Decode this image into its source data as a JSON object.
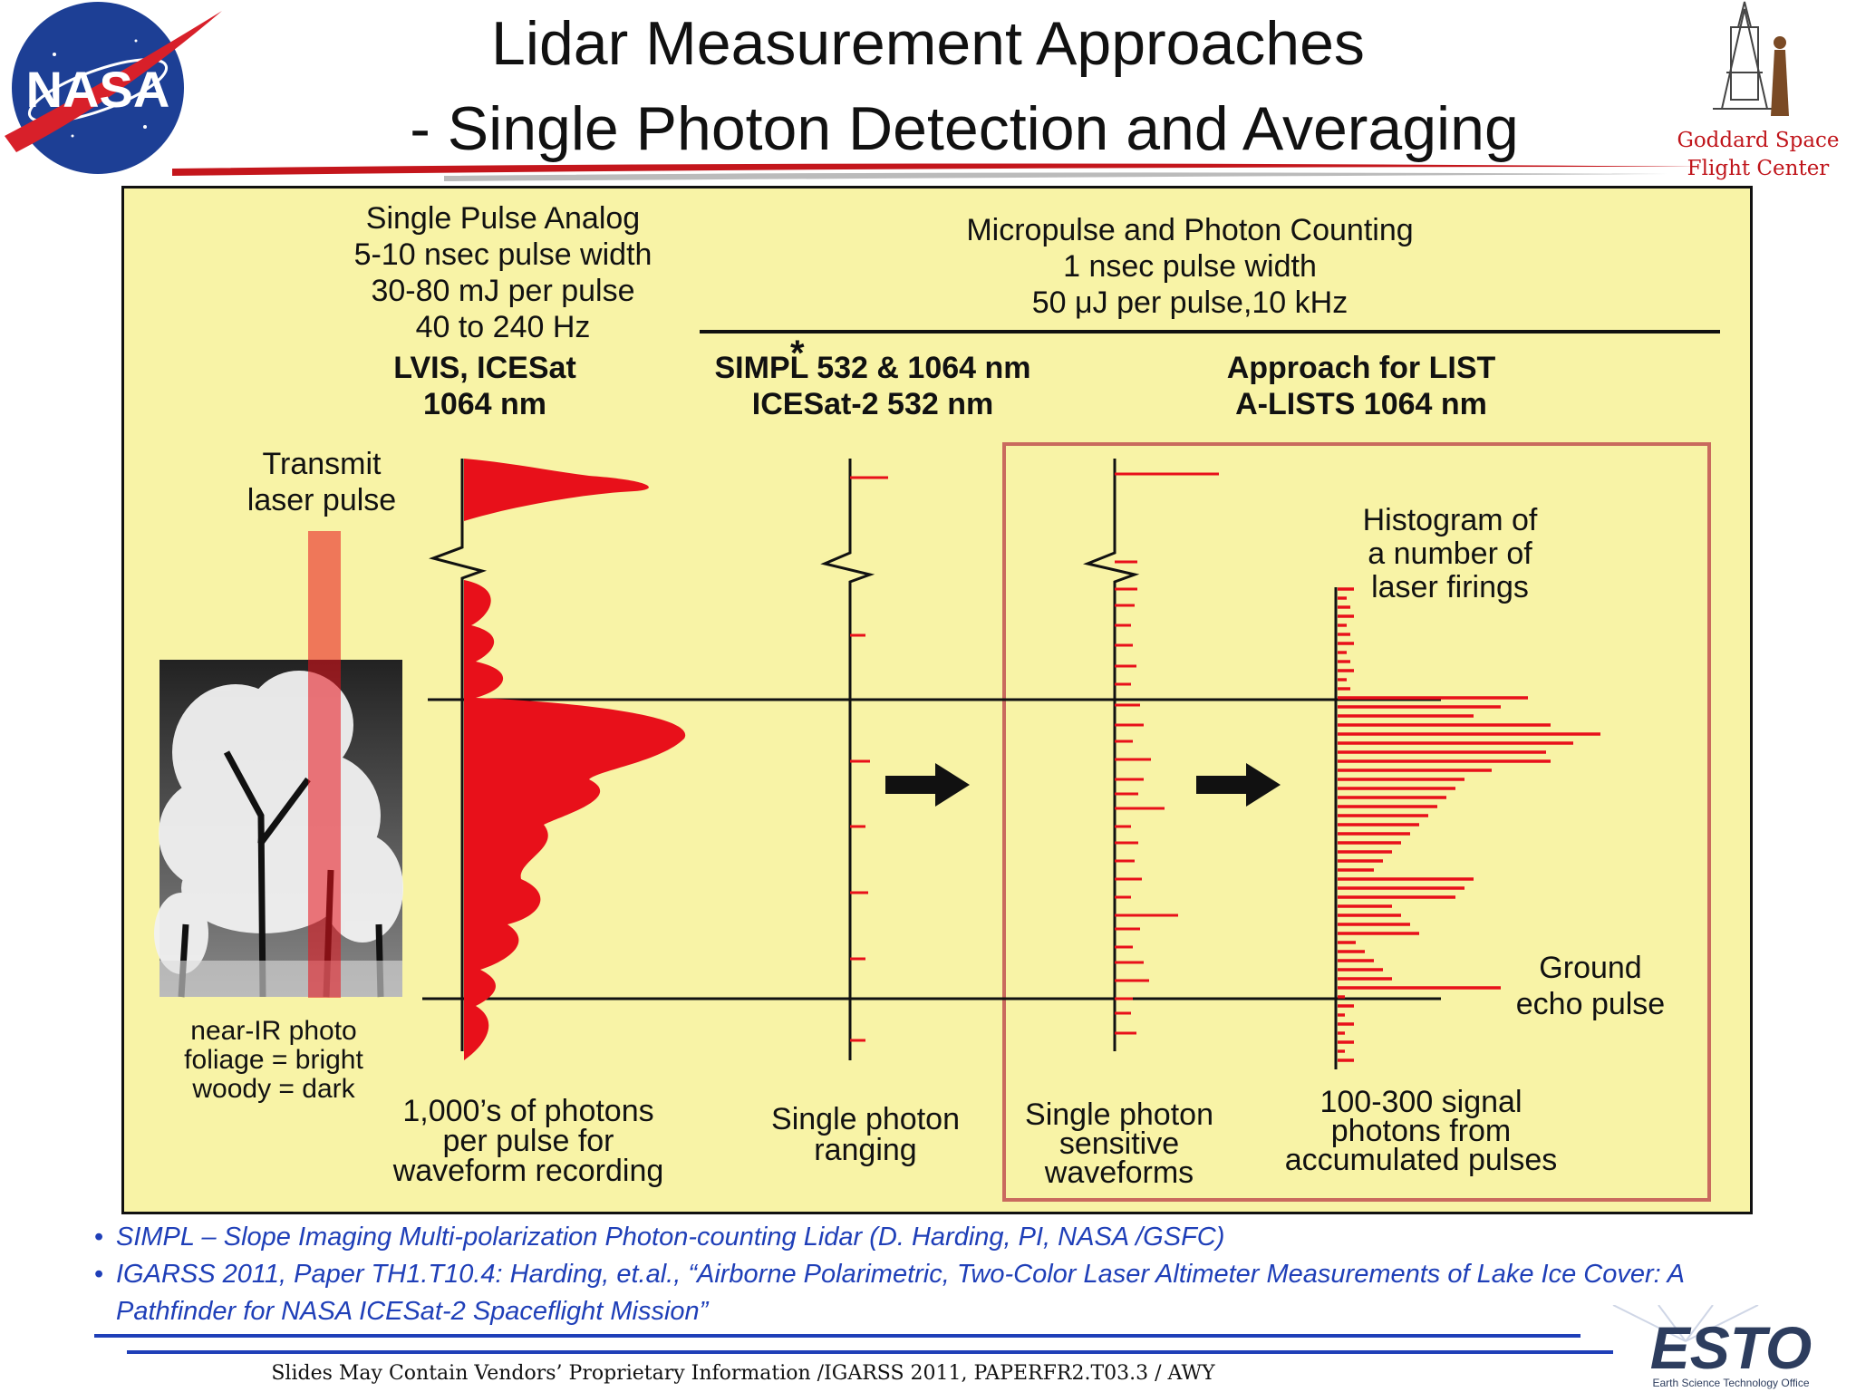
{
  "slide": {
    "title_line1": "Lidar Measurement Approaches",
    "title_line2": "- Single Photon Detection and Averaging",
    "nasa_logo": "NASA",
    "gsfc_line1": "Goddard Space",
    "gsfc_line2": "Flight Center",
    "esto_logo": "ESTO",
    "esto_sub": "Earth Science Technology Office",
    "footer": "Slides May Contain Vendors’ Proprietary Information /IGARSS 2011, PAPERFR2.T03.3 / AWY"
  },
  "colors": {
    "panel": "#f8f3a6",
    "red": "#e8101a",
    "blue": "#1f3fb8",
    "frame": "#c96a5e"
  },
  "diagram": {
    "analog_header": [
      "Single Pulse Analog",
      "5-10 nsec pulse width",
      "30-80 mJ per pulse",
      "40 to 240 Hz"
    ],
    "analog_system": [
      "LVIS, ICESat",
      "1064 nm"
    ],
    "micropulse_header": [
      "Micropulse and Photon Counting",
      "1 nsec pulse width",
      "50 μJ per pulse,10 kHz"
    ],
    "simpl_system": [
      "SIMPL 532 & 1064 nm",
      "ICESat-2 532 nm"
    ],
    "simpl_asterisk": "*",
    "list_system": [
      "Approach for LIST",
      "A-LISTS 1064 nm"
    ],
    "transmit_label": [
      "Transmit",
      "laser pulse"
    ],
    "histogram_label": [
      "Histogram of",
      "a number of",
      "laser firings"
    ],
    "ground_label": [
      "Ground",
      "echo pulse"
    ],
    "photo_caption": [
      "near-IR photo",
      "foliage = bright",
      "woody = dark"
    ],
    "caption_waveform": [
      "1,000’s of photons",
      "per pulse for",
      "waveform recording"
    ],
    "caption_ranging": [
      "Single photon",
      "ranging"
    ],
    "caption_sensitive": [
      "Single photon",
      "sensitive",
      "waveforms"
    ],
    "caption_histogram": [
      "100-300 signal",
      "photons from",
      "accumulated pulses"
    ]
  },
  "citations": [
    "SIMPL – Slope Imaging Multi-polarization Photon-counting Lidar (D. Harding, PI, NASA /GSFC)",
    "IGARSS 2011, Paper TH1.T10.4: Harding, et.al., “Airborne Polarimetric, Two-Color Laser Altimeter Measurements of Lake Ice Cover: A",
    "Pathfinder for NASA ICESat-2 Spaceflight Mission”"
  ]
}
